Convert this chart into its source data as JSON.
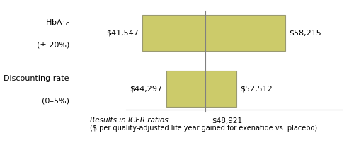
{
  "bars": [
    {
      "label_line1": "HbA1c",
      "label_line2": "(± 20%)",
      "low": 41547,
      "high": 58215,
      "low_label": "$41,547",
      "high_label": "$58,215"
    },
    {
      "label_line1": "Discounting rate",
      "label_line2": "(0–5%)",
      "low": 44297,
      "high": 52512,
      "low_label": "$44,297",
      "high_label": "$52,512"
    }
  ],
  "base_value": 48921,
  "base_label": "$48,921",
  "bar_color": "#cccb6a",
  "bar_edgecolor": "#999970",
  "bar_height": 0.42,
  "xmin": 34000,
  "xmax": 65000,
  "xlabel_italic": "Results in ICER ratios",
  "xlabel_sub": "($ per quality-adjusted life year gained for exenatide vs. placebo)",
  "background_color": "#ffffff",
  "text_color": "#000000",
  "font_size": 8,
  "label_font_size": 8,
  "annotation_font_size": 7.5
}
